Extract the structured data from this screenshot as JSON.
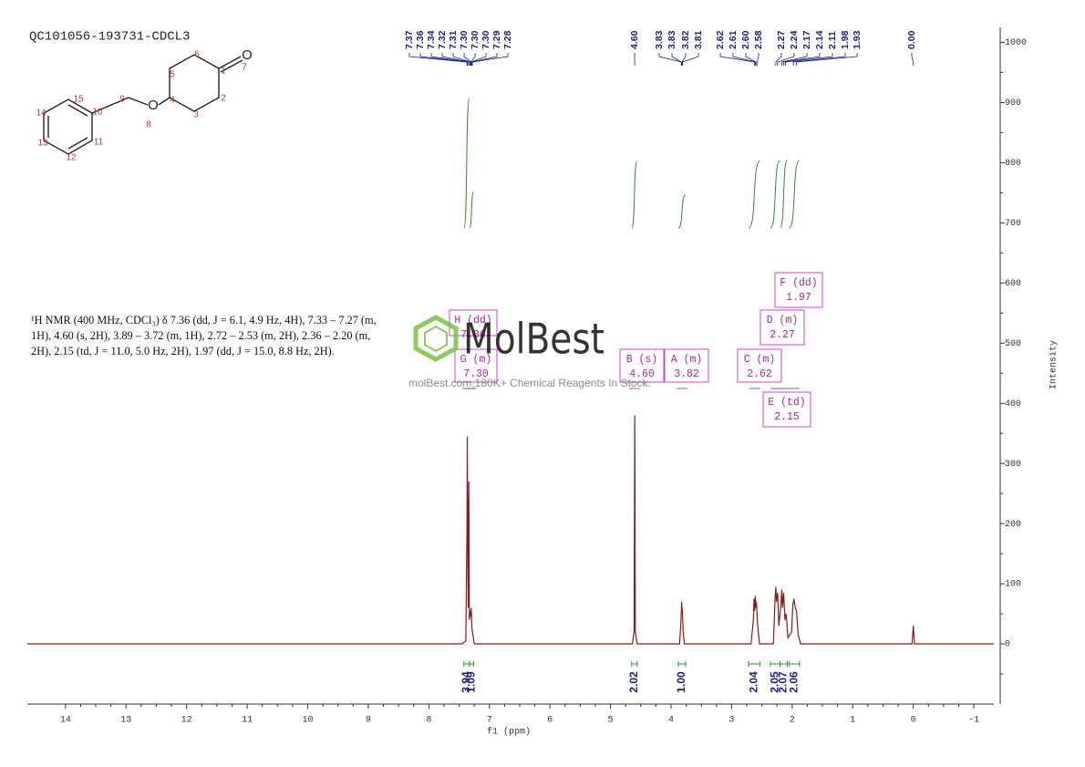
{
  "chart_data": {
    "type": "line",
    "title": "QC101056-193731-CDCL3",
    "annotation": "¹H NMR (400 MHz, CDCl₃) δ 7.36 (dd, J = 6.1, 4.9 Hz, 4H), 7.33 – 7.27 (m, 1H), 4.60 (s, 2H), 3.89 – 3.72 (m, 1H), 2.72 – 2.53 (m, 2H), 2.36 – 2.20 (m, 2H), 2.15 (td, J = 11.0, 5.0 Hz, 2H), 1.97 (dd, J = 15.0, 8.8 Hz, 2H).",
    "x_label": "f1 (ppm)",
    "y_label": "Intensity",
    "watermark": "MolBest",
    "watermark_sub": "molBest.com,180K+ Chemical Reagents In Stock.",
    "structure": {
      "oxygens": [
        "O",
        "O"
      ],
      "atom_labels": [
        "1",
        "2",
        "3",
        "4",
        "5",
        "6",
        "7",
        "8",
        "9",
        "10",
        "11",
        "12",
        "13",
        "14",
        "15"
      ]
    },
    "xlim": [
      14.63,
      -1.33
    ],
    "xticks": [
      14,
      13,
      12,
      11,
      10,
      9,
      8,
      7,
      6,
      5,
      4,
      3,
      2,
      1,
      0,
      -1
    ],
    "ylim": [
      -100,
      1025
    ],
    "yticks": [
      0,
      100,
      200,
      300,
      400,
      500,
      600,
      700,
      800,
      900,
      1000
    ],
    "series": [
      {
        "name": "spectrum",
        "color": "#8b1a1a",
        "x": [
          14.63,
          7.45,
          7.39,
          7.37,
          7.365,
          7.36,
          7.35,
          7.34,
          7.33,
          7.32,
          7.31,
          7.3,
          7.29,
          7.28,
          7.25,
          4.64,
          4.61,
          4.6,
          4.59,
          4.56,
          3.86,
          3.84,
          3.83,
          3.825,
          3.82,
          3.81,
          3.8,
          3.78,
          2.68,
          2.64,
          2.63,
          2.62,
          2.61,
          2.6,
          2.59,
          2.57,
          2.54,
          2.31,
          2.28,
          2.27,
          2.26,
          2.24,
          2.22,
          2.19,
          2.17,
          2.16,
          2.14,
          2.12,
          2.1,
          2.07,
          2.01,
          1.99,
          1.97,
          1.95,
          1.93,
          1.9,
          1.86,
          0.02,
          0.0,
          -0.02,
          -1.33
        ],
        "values": [
          0,
          0,
          5,
          200,
          345,
          250,
          60,
          270,
          40,
          55,
          45,
          60,
          30,
          20,
          0,
          0,
          20,
          380,
          20,
          0,
          0,
          30,
          55,
          70,
          60,
          50,
          20,
          0,
          0,
          40,
          75,
          55,
          80,
          60,
          70,
          30,
          0,
          0,
          80,
          95,
          70,
          85,
          30,
          60,
          90,
          60,
          85,
          40,
          50,
          10,
          20,
          65,
          75,
          60,
          55,
          15,
          0,
          0,
          30,
          0,
          0
        ]
      }
    ],
    "peak_labels": [
      7.37,
      7.36,
      7.34,
      7.32,
      7.31,
      {
        "value": 7.3,
        "label": "7.30"
      },
      {
        "value": 7.3,
        "label": "7.30"
      },
      {
        "value": 7.3,
        "label": "7.30"
      },
      7.29,
      7.28,
      {
        "value": 4.6,
        "label": "4.60"
      },
      3.83,
      3.83,
      3.82,
      3.81,
      2.62,
      2.61,
      {
        "value": 2.6,
        "label": "2.60"
      },
      2.58,
      2.27,
      2.24,
      2.17,
      2.14,
      2.11,
      1.98,
      1.93,
      {
        "value": 0,
        "label": "0.00"
      }
    ],
    "multiplets": [
      {
        "name": "H (dd)",
        "shift": 7.36
      },
      {
        "name": "G (m)",
        "shift": {
          "value": 7.3,
          "label": "7.30"
        }
      },
      {
        "name": "B (s)",
        "shift": {
          "value": 4.6,
          "label": "4.60"
        }
      },
      {
        "name": "A (m)",
        "shift": 3.82
      },
      {
        "name": "C (m)",
        "shift": 2.62
      },
      {
        "name": "D (m)",
        "shift": 2.27
      },
      {
        "name": "F (dd)",
        "shift": 1.97
      },
      {
        "name": "E (td)",
        "shift": 2.15
      }
    ],
    "integrals": [
      {
        "range": [
          7.42,
          7.33
        ],
        "value": 3.94,
        "value_label": "3.94"
      },
      {
        "range": [
          7.33,
          7.26
        ],
        "value": 1.09,
        "value_label": "1.09"
      },
      {
        "range": [
          4.65,
          4.56
        ],
        "value": 2.02,
        "value_label": "2.02"
      },
      {
        "range": [
          3.88,
          3.76
        ],
        "value": 1,
        "value_label": "1.00"
      },
      {
        "range": [
          2.72,
          2.53
        ],
        "value": 2.04,
        "value_label": "2.04"
      },
      {
        "range": [
          2.36,
          2.2
        ],
        "value": 2.05,
        "value_label": "2.05"
      },
      {
        "range": [
          2.2,
          2.08
        ],
        "value": 2.07,
        "value_label": "2.07"
      },
      {
        "range": [
          2.05,
          1.88
        ],
        "value": 2.06,
        "value_label": "2.06"
      }
    ]
  }
}
